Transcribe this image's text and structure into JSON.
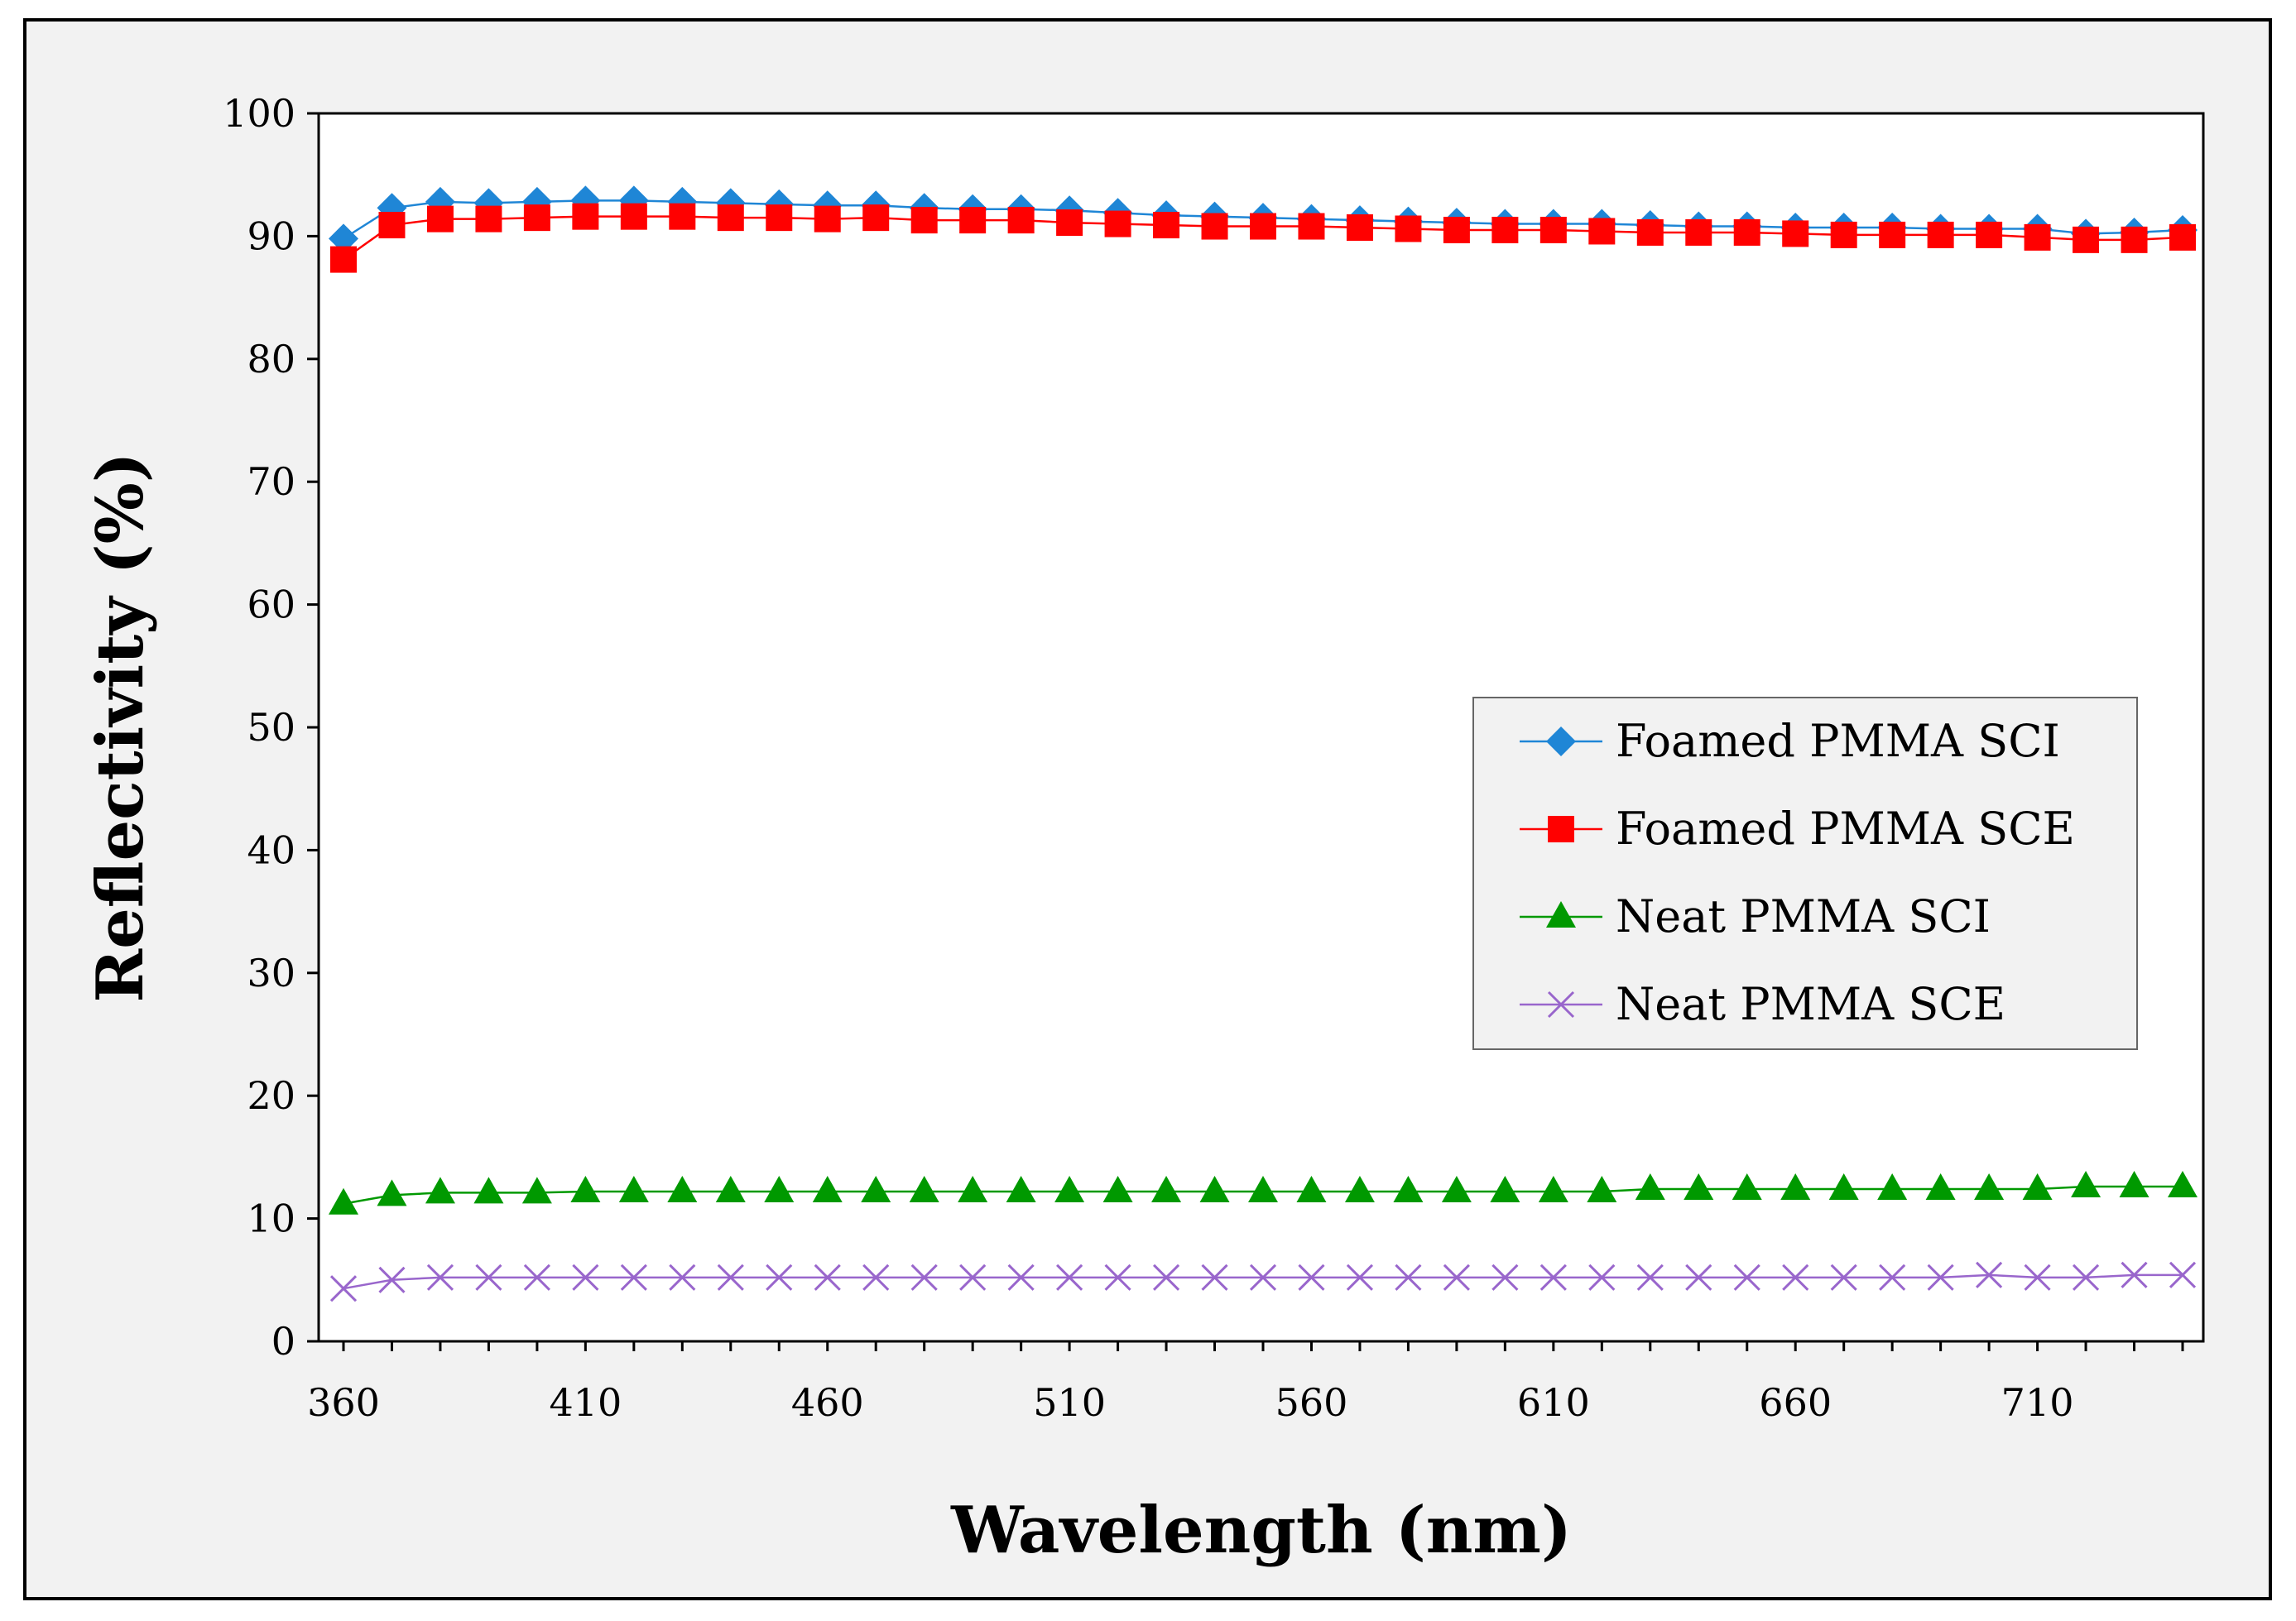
{
  "chart_data": {
    "type": "line",
    "title": "",
    "xlabel": "Wavelength (nm)",
    "ylabel": "Reflectivity (%)",
    "xlim": [
      360,
      740
    ],
    "ylim": [
      0,
      100
    ],
    "x_ticks": [
      360,
      410,
      460,
      510,
      560,
      610,
      660,
      710
    ],
    "y_ticks": [
      0,
      10,
      20,
      30,
      40,
      50,
      60,
      70,
      80,
      90,
      100
    ],
    "legend_position": "center-right",
    "x": [
      360,
      370,
      380,
      390,
      400,
      410,
      420,
      430,
      440,
      450,
      460,
      470,
      480,
      490,
      500,
      510,
      520,
      530,
      540,
      550,
      560,
      570,
      580,
      590,
      600,
      610,
      620,
      630,
      640,
      650,
      660,
      670,
      680,
      690,
      700,
      710,
      720,
      730,
      740
    ],
    "series": [
      {
        "name": "Foamed PMMA SCI",
        "color": "#1f86d6",
        "marker": "diamond",
        "values": [
          89.8,
          92.3,
          92.8,
          92.7,
          92.8,
          92.9,
          92.9,
          92.8,
          92.7,
          92.6,
          92.5,
          92.5,
          92.3,
          92.2,
          92.2,
          92.1,
          91.9,
          91.7,
          91.6,
          91.5,
          91.4,
          91.3,
          91.2,
          91.1,
          91.0,
          91.0,
          91.0,
          90.9,
          90.8,
          90.8,
          90.7,
          90.7,
          90.7,
          90.6,
          90.6,
          90.6,
          90.2,
          90.3,
          90.5
        ]
      },
      {
        "name": "Foamed PMMA SCE",
        "color": "#ff0000",
        "marker": "square",
        "values": [
          88.1,
          90.9,
          91.4,
          91.4,
          91.5,
          91.6,
          91.6,
          91.6,
          91.5,
          91.5,
          91.4,
          91.5,
          91.3,
          91.3,
          91.3,
          91.1,
          91.0,
          90.9,
          90.8,
          90.8,
          90.8,
          90.7,
          90.6,
          90.5,
          90.5,
          90.5,
          90.4,
          90.3,
          90.3,
          90.3,
          90.2,
          90.1,
          90.1,
          90.1,
          90.1,
          89.9,
          89.7,
          89.7,
          89.9
        ]
      },
      {
        "name": "Neat PMMA SCI",
        "color": "#009900",
        "marker": "triangle",
        "values": [
          11.2,
          11.9,
          12.1,
          12.1,
          12.1,
          12.2,
          12.2,
          12.2,
          12.2,
          12.2,
          12.2,
          12.2,
          12.2,
          12.2,
          12.2,
          12.2,
          12.2,
          12.2,
          12.2,
          12.2,
          12.2,
          12.2,
          12.2,
          12.2,
          12.2,
          12.2,
          12.2,
          12.4,
          12.4,
          12.4,
          12.4,
          12.4,
          12.4,
          12.4,
          12.4,
          12.4,
          12.6,
          12.6,
          12.6
        ]
      },
      {
        "name": "Neat PMMA SCE",
        "color": "#9966cc",
        "marker": "x",
        "values": [
          4.3,
          5.0,
          5.2,
          5.2,
          5.2,
          5.2,
          5.2,
          5.2,
          5.2,
          5.2,
          5.2,
          5.2,
          5.2,
          5.2,
          5.2,
          5.2,
          5.2,
          5.2,
          5.2,
          5.2,
          5.2,
          5.2,
          5.2,
          5.2,
          5.2,
          5.2,
          5.2,
          5.2,
          5.2,
          5.2,
          5.2,
          5.2,
          5.2,
          5.2,
          5.4,
          5.2,
          5.2,
          5.4,
          5.4
        ]
      }
    ]
  }
}
